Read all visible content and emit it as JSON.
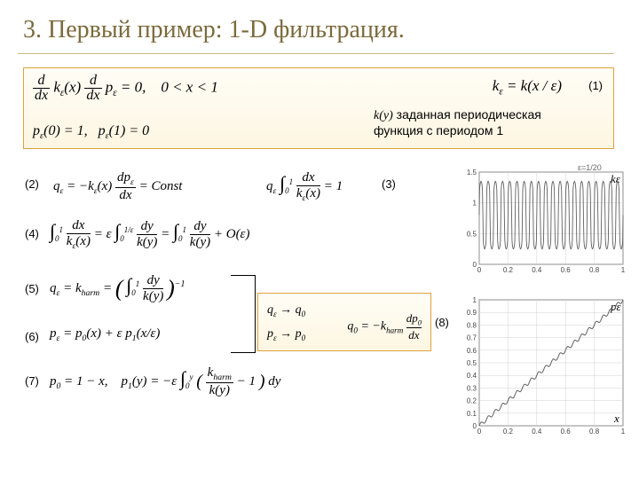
{
  "title": "3. Первый пример: 1-D фильтрация.",
  "box1": {
    "eq_main": "",
    "eq_bc": "",
    "eq_k": "kε = k(x / ε)",
    "label": "(1)",
    "note_prefix": "k(y)",
    "note_text": " заданная периодическая функция с периодом 1"
  },
  "labels": {
    "l2": "(2)",
    "l3": "(3)",
    "l4": "(4)",
    "l5": "(5)",
    "l6": "(6)",
    "l7": "(7)",
    "l8": "(8)"
  },
  "eqs": {
    "e2": "qε = −kε(x) dpε/dx = Const",
    "e3": "qε ∫₀¹ dx / kε(x) = 1",
    "e4": "∫₀¹ dx/kε(x) = ε ∫₀^{1/ε} dy/k(y) = ∫₀¹ dy/k(y) + O(ε)",
    "e5": "qε = k_harm = ( ∫₀¹ dy/k(y) )⁻¹",
    "e6": "pε = p₀(x) + ε p₁(x/ε)",
    "e7": "p₀ = 1 − x,    p₁(y) = −ε ∫₀ʸ ( k_harm/k(y) − 1 ) dy"
  },
  "limit_box": {
    "line1": "qε → q₀",
    "line2": "pε → p₀",
    "line3": "q₀ = −k_harm dp₀/dx"
  },
  "chart_top": {
    "ylabel": "kε",
    "title": "ε=1/20",
    "xticks": [
      0,
      0.2,
      0.4,
      0.6,
      0.8,
      1
    ],
    "yticks": [
      0,
      0.5,
      1,
      1.5
    ],
    "ylim": [
      0,
      1.5
    ],
    "xlim": [
      0,
      1
    ],
    "periods": 20,
    "amplitude_low": 0.25,
    "amplitude_high": 1.35,
    "line_color": "#606060",
    "grid_color": "#d0d0d0",
    "bg": "#ffffff"
  },
  "chart_bottom": {
    "ylabel": "pε",
    "xlabel": "x",
    "xticks": [
      0,
      0.2,
      0.4,
      0.6,
      0.8,
      1
    ],
    "yticks": [
      0,
      0.1,
      0.2,
      0.3,
      0.4,
      0.5,
      0.6,
      0.7,
      0.8,
      0.9,
      1
    ],
    "ylim": [
      0,
      1
    ],
    "xlim": [
      0,
      1
    ],
    "periods": 20,
    "ripple": 0.015,
    "line_color": "#606060",
    "grid_color": "#d0d0d0",
    "bg": "#ffffff"
  },
  "colors": {
    "title": "#7b6a3c",
    "box_border": "#dca23a"
  }
}
